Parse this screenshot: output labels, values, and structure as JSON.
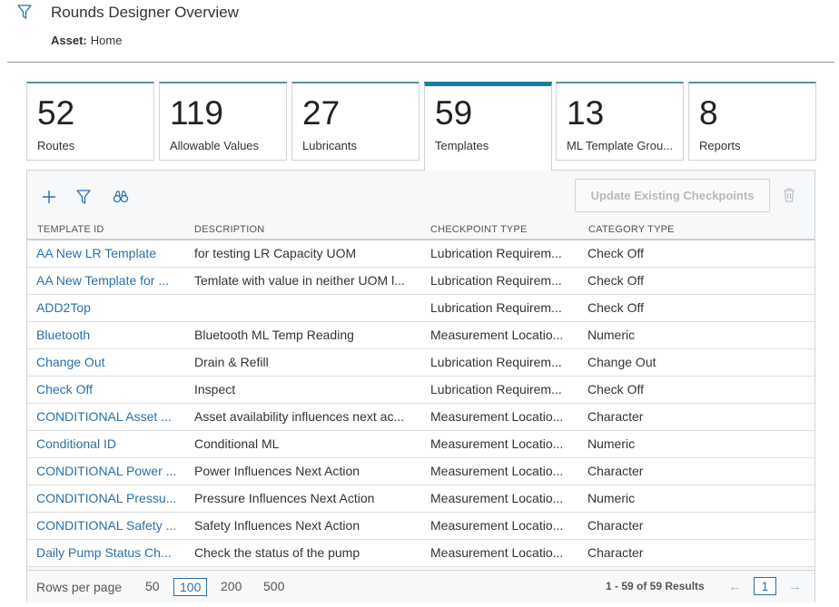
{
  "header": {
    "title": "Rounds Designer Overview",
    "asset_label": "Asset:",
    "asset_value": "Home"
  },
  "cards": [
    {
      "value": "52",
      "label": "Routes"
    },
    {
      "value": "119",
      "label": "Allowable Values"
    },
    {
      "value": "27",
      "label": "Lubricants"
    },
    {
      "value": "59",
      "label": "Templates",
      "active": true
    },
    {
      "value": "13",
      "label": "ML Template Grou..."
    },
    {
      "value": "8",
      "label": "Reports"
    }
  ],
  "toolbar": {
    "update_label": "Update Existing Checkpoints"
  },
  "table": {
    "columns": [
      "TEMPLATE ID",
      "DESCRIPTION",
      "CHECKPOINT TYPE",
      "CATEGORY TYPE"
    ],
    "rows": [
      [
        "AA New LR Template",
        "for testing LR Capacity UOM",
        "Lubrication Requirem...",
        "Check Off"
      ],
      [
        "AA New Template for ...",
        "Temlate with value in neither UOM l...",
        "Lubrication Requirem...",
        "Check Off"
      ],
      [
        "ADD2Top",
        "",
        "Lubrication Requirem...",
        "Check Off"
      ],
      [
        "Bluetooth",
        "Bluetooth ML Temp Reading",
        "Measurement Locatio...",
        "Numeric"
      ],
      [
        "Change Out",
        "Drain & Refill",
        "Lubrication Requirem...",
        "Change Out"
      ],
      [
        "Check Off",
        "Inspect",
        "Lubrication Requirem...",
        "Check Off"
      ],
      [
        "CONDITIONAL Asset ...",
        "Asset availability influences next ac...",
        "Measurement Locatio...",
        "Character"
      ],
      [
        "Conditional ID",
        "Conditional ML",
        "Measurement Locatio...",
        "Numeric"
      ],
      [
        "CONDITIONAL Power ...",
        "Power Influences Next Action",
        "Measurement Locatio...",
        "Character"
      ],
      [
        "CONDITIONAL Pressu...",
        "Pressure Influences Next Action",
        "Measurement Locatio...",
        "Numeric"
      ],
      [
        "CONDITIONAL Safety ...",
        "Safety Influences Next Action",
        "Measurement Locatio...",
        "Character"
      ],
      [
        "Daily Pump Status Ch...",
        "Check the status of the pump",
        "Measurement Locatio...",
        "Character"
      ]
    ]
  },
  "footer": {
    "rows_per_page_label": "Rows per page",
    "rows_options": [
      "50",
      "100",
      "200",
      "500"
    ],
    "rows_selected": "100",
    "results": "1 - 59 of 59 Results",
    "current_page": "1",
    "prev_icon": "arrow-left-icon",
    "next_icon": "arrow-right-icon"
  },
  "colors": {
    "accent": "#1a7f9a",
    "link": "#2a6fab"
  }
}
